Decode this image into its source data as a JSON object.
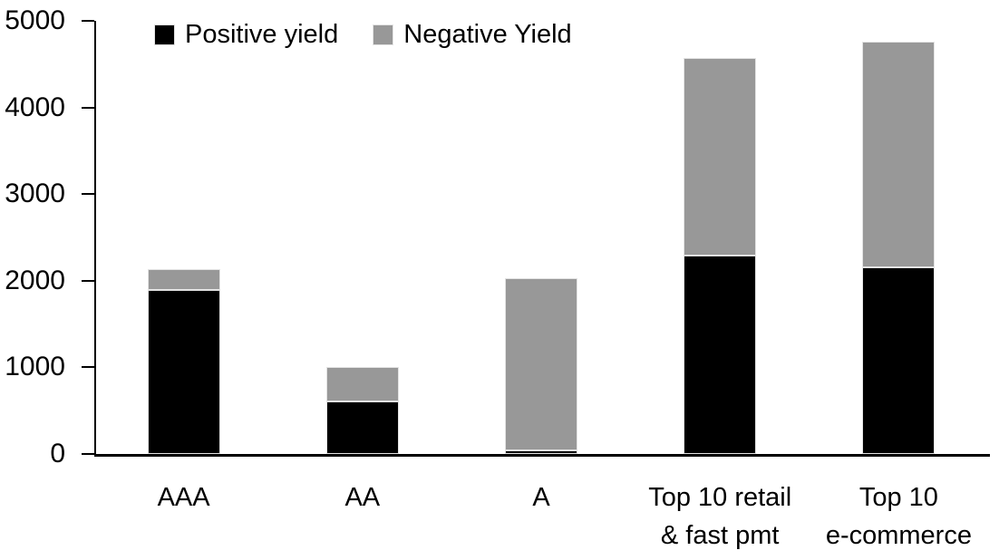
{
  "chart_data": {
    "type": "bar",
    "stacked": true,
    "title": "",
    "xlabel": "",
    "ylabel": "",
    "categories": [
      "AAA",
      "AA",
      "A",
      "Top 10 retail\n& fast pmt",
      "Top 10\ne-commerce"
    ],
    "series": [
      {
        "name": "Positive yield",
        "color": "#000000",
        "values": [
          1890,
          610,
          40,
          2290,
          2150
        ]
      },
      {
        "name": "Negative Yield",
        "color": "#989898",
        "values": [
          240,
          390,
          1990,
          2280,
          2610
        ]
      }
    ],
    "totals": [
      2130,
      1000,
      2030,
      4570,
      4760
    ],
    "ylim": [
      0,
      5000
    ],
    "yticks": [
      0,
      1000,
      2000,
      3000,
      4000,
      5000
    ],
    "grid": false,
    "legend_position": "top-left",
    "axis_color": "#000000",
    "background_color": "#ffffff"
  }
}
